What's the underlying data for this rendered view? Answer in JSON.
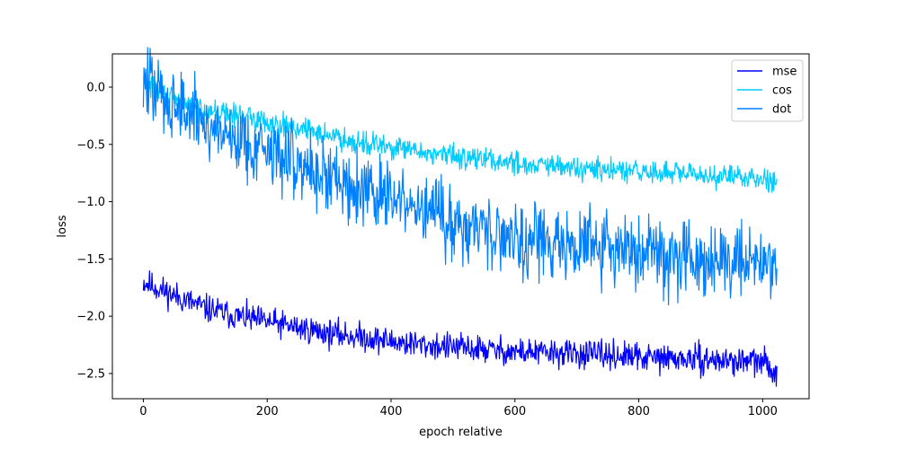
{
  "chart_data": {
    "type": "line",
    "title": "",
    "xlabel": "epoch relative",
    "ylabel": "loss",
    "xlim": [
      -50,
      1075
    ],
    "ylim": [
      -2.72,
      0.29
    ],
    "x_ticks": [
      0,
      200,
      400,
      600,
      800,
      1000
    ],
    "x_tick_labels": [
      "0",
      "200",
      "400",
      "600",
      "800",
      "1000"
    ],
    "y_ticks": [
      0.0,
      -0.5,
      -1.0,
      -1.5,
      -2.0,
      -2.5
    ],
    "y_tick_labels": [
      "0.0",
      "−0.5",
      "−1.0",
      "−1.5",
      "−2.0",
      "−2.5"
    ],
    "grid": false,
    "legend_position": "top-right",
    "series": [
      {
        "name": "mse",
        "color": "#0000ff",
        "x": [
          0,
          50,
          100,
          150,
          200,
          250,
          300,
          350,
          400,
          450,
          500,
          550,
          600,
          650,
          700,
          750,
          800,
          850,
          900,
          950,
          1000,
          1023
        ],
        "y": [
          -1.7,
          -1.82,
          -1.93,
          -2.0,
          -2.05,
          -2.1,
          -2.15,
          -2.18,
          -2.22,
          -2.25,
          -2.27,
          -2.29,
          -2.31,
          -2.32,
          -2.33,
          -2.34,
          -2.36,
          -2.37,
          -2.38,
          -2.39,
          -2.4,
          -2.5
        ],
        "noise": 0.06
      },
      {
        "name": "cos",
        "color": "#00ccff",
        "x": [
          0,
          50,
          100,
          150,
          200,
          250,
          300,
          350,
          400,
          450,
          500,
          550,
          600,
          650,
          700,
          750,
          800,
          850,
          900,
          950,
          1000,
          1023
        ],
        "y": [
          0.05,
          -0.12,
          -0.2,
          -0.25,
          -0.3,
          -0.36,
          -0.42,
          -0.48,
          -0.53,
          -0.57,
          -0.6,
          -0.63,
          -0.66,
          -0.69,
          -0.71,
          -0.73,
          -0.74,
          -0.75,
          -0.77,
          -0.78,
          -0.79,
          -0.82
        ],
        "noise": 0.05
      },
      {
        "name": "dot",
        "color": "#0080ff",
        "x": [
          0,
          50,
          100,
          150,
          200,
          250,
          300,
          350,
          400,
          450,
          500,
          550,
          600,
          650,
          700,
          750,
          800,
          850,
          900,
          950,
          1000,
          1023
        ],
        "y": [
          0.05,
          -0.15,
          -0.32,
          -0.45,
          -0.55,
          -0.66,
          -0.78,
          -0.88,
          -0.98,
          -1.08,
          -1.17,
          -1.24,
          -1.3,
          -1.35,
          -1.38,
          -1.41,
          -1.44,
          -1.46,
          -1.48,
          -1.5,
          -1.5,
          -1.55
        ],
        "noise": 0.16
      }
    ]
  }
}
